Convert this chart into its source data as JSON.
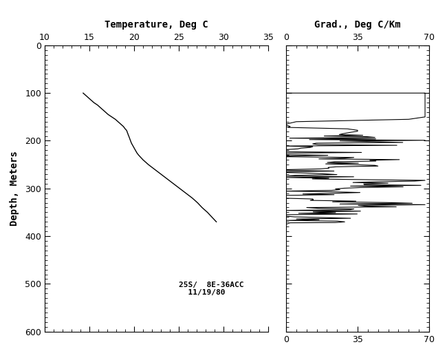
{
  "title_temp": "Temperature, Deg C",
  "title_grad": "Grad., Deg C/Km",
  "ylabel": "Depth, Meters",
  "temp_xlim": [
    10,
    35
  ],
  "temp_xticks": [
    10,
    15,
    20,
    25,
    30,
    35
  ],
  "grad_xlim": [
    0,
    70
  ],
  "grad_xticks": [
    0,
    35,
    70
  ],
  "ylim": [
    600,
    0
  ],
  "yticks": [
    0,
    100,
    200,
    300,
    400,
    500,
    600
  ],
  "annotation": "25S/  8E-36ACC\n  11/19/80",
  "background_color": "#ffffff",
  "line_color": "#000000",
  "font_family": "DejaVu Sans Mono"
}
